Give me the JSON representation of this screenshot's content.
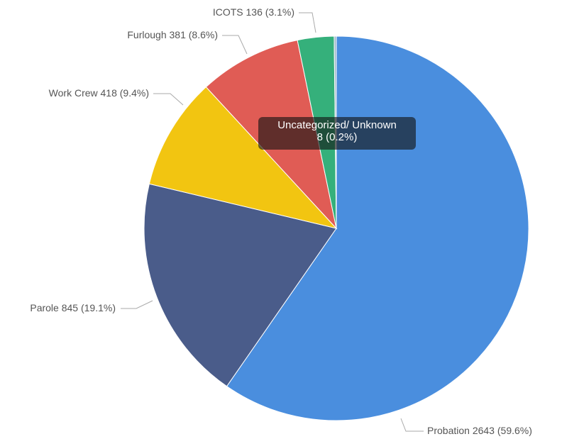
{
  "chart_data": {
    "type": "pie",
    "categories": [
      "Probation",
      "Parole",
      "Work Crew",
      "Furlough",
      "ICOTS",
      "Uncategorized/ Unknown"
    ],
    "values": [
      2643,
      845,
      418,
      381,
      136,
      8
    ],
    "percent_labels": [
      "(59.6%)",
      "(19.1%)",
      "(9.4%)",
      "(8.6%)",
      "(3.1%)",
      "(0.2%)"
    ],
    "colors": [
      "#4a8ede",
      "#4a5c8a",
      "#f2c511",
      "#e05c55",
      "#35b07b",
      "#9fb6c9"
    ]
  }
}
